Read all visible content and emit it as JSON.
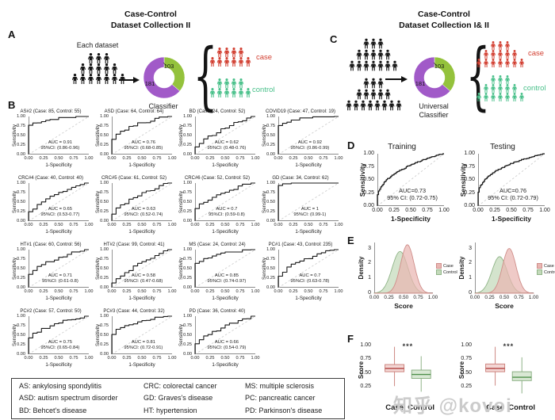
{
  "colors": {
    "crowd_black": "#161616",
    "case_red": "#d23f31",
    "control_green": "#49c08a",
    "donut_green": "#94c23c",
    "donut_purple": "#a15ac8",
    "roc_line": "#1a1a1a",
    "diag_dash": "#cfcfcf",
    "density_case_fill": "#e9b6b2",
    "density_case_line": "#cf8e8a",
    "density_control_fill": "#c3d9ba",
    "density_control_line": "#8fb487",
    "box_case_fill": "#f3d6d4",
    "box_case_line": "#c97c76",
    "box_case_median": "#b0413e",
    "box_control_fill": "#d9e8d4",
    "box_control_line": "#84ab7c",
    "box_control_median": "#4e8f4a"
  },
  "panelA": {
    "label": "A",
    "title_line1": "Case-Control",
    "title_line2": "Dataset Collection II",
    "each_dataset": "Each dataset",
    "classifier": "Classifier",
    "brace": "{",
    "donut": {
      "small_value": "103",
      "large_value": "181"
    },
    "case_label": "case",
    "control_label": "control",
    "dataset_rows": [
      3,
      5,
      7
    ],
    "case_rows": [
      4,
      6
    ],
    "control_rows": [
      4,
      6
    ]
  },
  "panelC": {
    "label": "C",
    "title_line1": "Case-Control",
    "title_line2": "Dataset Collection I& II",
    "classifier_line1": "Universal",
    "classifier_line2": "Classifier",
    "brace": "{",
    "donut": {
      "small_value": "103",
      "large_value": "181"
    },
    "case_label": "case",
    "control_label": "control",
    "dataset1_rows": [
      3,
      5,
      7
    ],
    "dataset2_rows": [
      3,
      5,
      8
    ],
    "case_rows": [
      3,
      5,
      7
    ],
    "control_rows": [
      3,
      5,
      7
    ]
  },
  "panelB": {
    "label": "B"
  },
  "panelD": {
    "label": "D"
  },
  "panelE": {
    "label": "E"
  },
  "panelF": {
    "label": "F"
  },
  "legend_box": {
    "entries": [
      "AS: ankylosing spondylitis",
      "CRC: colorectal cancer",
      "MS: multiple sclerosis",
      "ASD: autism spectrum disorder",
      "GD: Graves's disease",
      "PC: pancreatic cancer",
      "BD: Behcet's disease",
      "HT: hypertension",
      "PD: Parkinson's disease"
    ]
  },
  "watermark": "知乎 @kovoi",
  "chart_data": [
    {
      "panel": "B",
      "type": "line",
      "subtype": "roc-grid",
      "xlabel": "1-Specificity",
      "ylabel": "Sensitivity",
      "xticks": [
        "0.00",
        "0.25",
        "0.50",
        "0.75",
        "1.00"
      ],
      "yticks": [
        "1.00",
        "0.75",
        "0.50",
        "0.25",
        "0.00"
      ],
      "xlim": [
        0,
        1
      ],
      "ylim": [
        0,
        1
      ],
      "plots": [
        {
          "title": "AS#2 (Case: 85, Control: 55)",
          "auc": 0.91,
          "auc_label": "AUC = 0.91",
          "ci_label": "95%CI: (0.86-0.96)"
        },
        {
          "title": "ASD (Case: 64, Control: 64)",
          "auc": 0.76,
          "auc_label": "AUC = 0.76",
          "ci_label": "95%CI: (0.68-0.85)"
        },
        {
          "title": "BD (Case: 24, Control: 52)",
          "auc": 0.62,
          "auc_label": "AUC = 0.62",
          "ci_label": "95%CI: (0.48-0.76)"
        },
        {
          "title": "COVID19 (Case: 47, Control: 19)",
          "auc": 0.92,
          "auc_label": "AUC = 0.92",
          "ci_label": "95%CI: (0.86-0.99)"
        },
        {
          "title": "CRC#4 (Case: 40, Control: 40)",
          "auc": 0.65,
          "auc_label": "AUC = 0.65",
          "ci_label": "95%CI: (0.53-0.77)"
        },
        {
          "title": "CRC#5 (Case: 61, Control: 52)",
          "auc": 0.63,
          "auc_label": "AUC = 0.63",
          "ci_label": "95%CI: (0.52-0.74)"
        },
        {
          "title": "CRC#6 (Case: 52, Control: 52)",
          "auc": 0.7,
          "auc_label": "AUC = 0.7",
          "ci_label": "95%CI: (0.59-0.8)"
        },
        {
          "title": "GD (Case: 34, Control: 62)",
          "auc": 1.0,
          "auc_label": "AUC = 1",
          "ci_label": "95%CI: (0.99-1)"
        },
        {
          "title": "HT#1 (Case: 60, Control: 56)",
          "auc": 0.71,
          "auc_label": "AUC = 0.71",
          "ci_label": "95%CI: (0.61-0.8)"
        },
        {
          "title": "HT#2 (Case: 99, Control: 41)",
          "auc": 0.58,
          "auc_label": "AUC = 0.58",
          "ci_label": "95%CI: (0.47-0.68)"
        },
        {
          "title": "MS (Case: 24, Control: 24)",
          "auc": 0.85,
          "auc_label": "AUC = 0.85",
          "ci_label": "95%CI: (0.74-0.97)"
        },
        {
          "title": "PC#1 (Case: 43, Control: 235)",
          "auc": 0.7,
          "auc_label": "AUC = 0.7",
          "ci_label": "95%CI: (0.63-0.78)"
        },
        {
          "title": "PC#2 (Case: 57, Control: 50)",
          "auc": 0.75,
          "auc_label": "AUC = 0.75",
          "ci_label": "95%CI: (0.65-0.84)"
        },
        {
          "title": "PC#3 (Case: 44, Control: 32)",
          "auc": 0.81,
          "auc_label": "AUC = 0.81",
          "ci_label": "95%CI: (0.72-0.91)"
        },
        {
          "title": "PD (Case: 36, Control: 40)",
          "auc": 0.66,
          "auc_label": "AUC = 0.66",
          "ci_label": "95%CI: (0.54-0.79)"
        }
      ]
    },
    {
      "panel": "D",
      "type": "line",
      "subtype": "roc",
      "xlabel": "1-Specificity",
      "ylabel": "Sensitivity",
      "xticks": [
        "0.00",
        "0.25",
        "0.50",
        "0.75",
        "1.00"
      ],
      "yticks": [
        "1.00",
        "0.75",
        "0.50",
        "0.25",
        "0.00"
      ],
      "xlim": [
        0,
        1
      ],
      "ylim": [
        0,
        1
      ],
      "plots": [
        {
          "title": "Training",
          "auc": 0.73,
          "auc_label": "AUC=0.73",
          "ci_label": "95% CI: (0.72-0.75)"
        },
        {
          "title": "Testing",
          "auc": 0.76,
          "auc_label": "AUC=0.76",
          "ci_label": "95% CI: (0.72-0.79)"
        }
      ]
    },
    {
      "panel": "E",
      "type": "area",
      "subtype": "density",
      "xlabel": "Score",
      "ylabel": "Density",
      "xticks": [
        "0.00",
        "0.25",
        "0.50",
        "0.75",
        "1.00"
      ],
      "yticks": [
        "3",
        "2",
        "1",
        "0"
      ],
      "xlim": [
        0,
        1
      ],
      "ylim": [
        0,
        3.4
      ],
      "legend": [
        "Case",
        "Control"
      ],
      "plots": [
        {
          "series": [
            {
              "name": "Case",
              "mean": 0.565,
              "sd": 0.115,
              "peak": 3.25
            },
            {
              "name": "Control",
              "mean": 0.44,
              "sd": 0.135,
              "peak": 2.8
            }
          ]
        },
        {
          "series": [
            {
              "name": "Case",
              "mean": 0.585,
              "sd": 0.115,
              "peak": 3.0
            },
            {
              "name": "Control",
              "mean": 0.42,
              "sd": 0.13,
              "peak": 2.45
            }
          ]
        }
      ]
    },
    {
      "panel": "F",
      "type": "box",
      "ylabel": "Score",
      "yticks": [
        "1.00",
        "0.75",
        "0.50",
        "0.25"
      ],
      "ylim": [
        0.05,
        1.05
      ],
      "categories": [
        "Case",
        "Control"
      ],
      "plots": [
        {
          "significance": "***",
          "boxes": [
            {
              "name": "Case",
              "low": 0.26,
              "q1": 0.52,
              "median": 0.58,
              "q3": 0.65,
              "high": 0.97
            },
            {
              "name": "Control",
              "low": 0.16,
              "q1": 0.4,
              "median": 0.47,
              "q3": 0.55,
              "high": 0.8
            }
          ]
        },
        {
          "significance": "***",
          "boxes": [
            {
              "name": "Case",
              "low": 0.27,
              "q1": 0.52,
              "median": 0.58,
              "q3": 0.66,
              "high": 0.97
            },
            {
              "name": "Control",
              "low": 0.13,
              "q1": 0.36,
              "median": 0.42,
              "q3": 0.52,
              "high": 0.78
            }
          ]
        }
      ]
    }
  ]
}
